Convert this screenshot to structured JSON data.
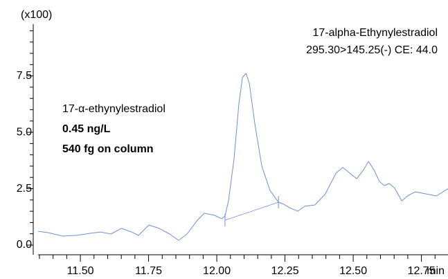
{
  "chart_data": {
    "type": "line",
    "title": "17-alpha-Ethynylestradiol",
    "subtitle": "295.30>145.25(-) CE: 44.0",
    "y_unit": "(x100)",
    "x_unit": "min",
    "annotations": [
      "17-α-ethynylestradiol",
      "0.45 ng/L",
      "540 fg on column"
    ],
    "color": "#6f8fd6",
    "xlim": [
      11.345,
      12.85
    ],
    "ylim": [
      -0.43,
      9.79
    ],
    "xticks": [
      {
        "value": 11.5,
        "label": "11.50"
      },
      {
        "value": 11.75,
        "label": "11.75"
      },
      {
        "value": 12.0,
        "label": "12.00"
      },
      {
        "value": 12.25,
        "label": "12.25"
      },
      {
        "value": 12.5,
        "label": "12.50"
      },
      {
        "value": 12.75,
        "label": "12.75"
      }
    ],
    "yticks": [
      {
        "value": 0,
        "label": "0.0"
      },
      {
        "value": 2.5,
        "label": "2.5"
      },
      {
        "value": 5,
        "label": "5.0"
      },
      {
        "value": 7.5,
        "label": "7.5"
      }
    ],
    "xminorticks": [
      11.35,
      11.4,
      11.45,
      11.55,
      11.6,
      11.65,
      11.7,
      11.8,
      11.85,
      11.9,
      11.95,
      12.05,
      12.1,
      12.15,
      12.2,
      12.3,
      12.35,
      12.4,
      12.45,
      12.55,
      12.6,
      12.65,
      12.7,
      12.8,
      12.85
    ],
    "yminorticks": [
      0.5,
      1,
      1.5,
      2,
      3,
      3.5,
      4,
      4.5,
      5.5,
      6,
      6.5,
      7,
      8,
      8.5,
      9,
      9.5
    ],
    "x": [
      11.345,
      11.383,
      11.434,
      11.485,
      11.536,
      11.574,
      11.612,
      11.65,
      11.688,
      11.713,
      11.751,
      11.789,
      11.827,
      11.86,
      11.891,
      11.929,
      11.954,
      11.992,
      12.018,
      12.03,
      12.043,
      12.063,
      12.081,
      12.094,
      12.107,
      12.119,
      12.14,
      12.165,
      12.195,
      12.226,
      12.246,
      12.266,
      12.297,
      12.322,
      12.36,
      12.398,
      12.437,
      12.462,
      12.487,
      12.513,
      12.538,
      12.556,
      12.576,
      12.596,
      12.614,
      12.632,
      12.652,
      12.678,
      12.703,
      12.728,
      12.766,
      12.805,
      12.85
    ],
    "values": [
      0.61,
      0.55,
      0.4,
      0.43,
      0.52,
      0.58,
      0.49,
      0.74,
      0.58,
      0.43,
      0.89,
      0.74,
      0.49,
      0.21,
      0.49,
      1.1,
      1.41,
      1.32,
      1.17,
      1.29,
      1.96,
      3.8,
      6.26,
      7.42,
      7.61,
      7.18,
      5.34,
      3.5,
      2.42,
      1.9,
      1.81,
      1.66,
      1.5,
      1.72,
      1.78,
      2.27,
      3.19,
      3.44,
      3.19,
      2.94,
      3.34,
      3.71,
      3.34,
      2.82,
      2.64,
      2.73,
      2.52,
      1.96,
      2.21,
      2.36,
      2.27,
      2.18,
      2.52
    ],
    "baseline_x": [
      12.03,
      12.226
    ],
    "baseline_values": [
      1.1,
      1.9
    ]
  }
}
